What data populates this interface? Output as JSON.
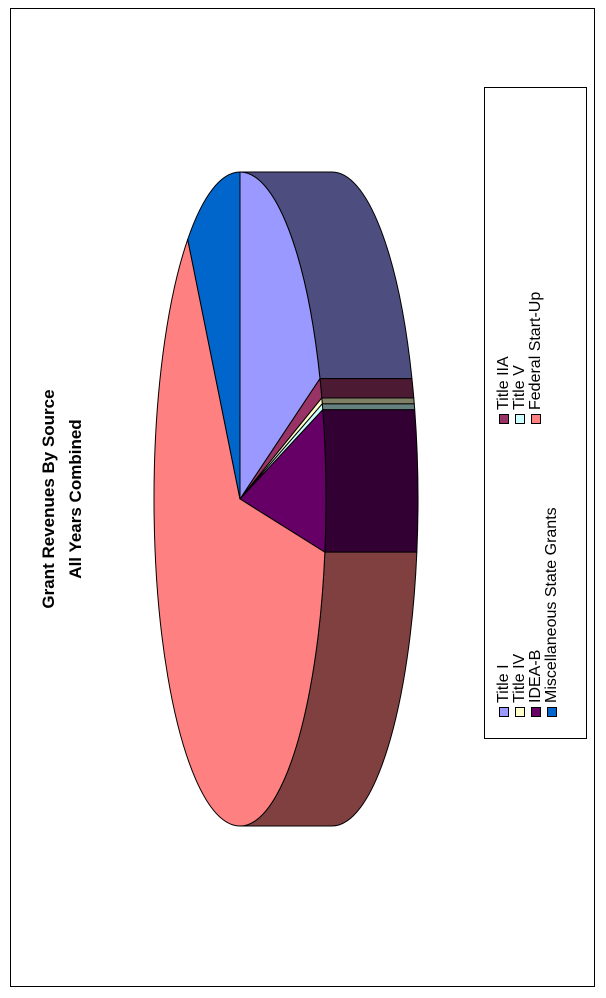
{
  "chart_data": {
    "type": "pie",
    "title": "Grant Revenues By Source",
    "subtitle": "All Years Combined",
    "labels": [
      "Title I",
      "Title IIA",
      "Title IV",
      "Title V",
      "IDEA-B",
      "Federal Start-Up",
      "Miscellaneous State Grants"
    ],
    "values": [
      19,
      1,
      0.3,
      0.3,
      7,
      62,
      10.4
    ],
    "colors": [
      "#9999FF",
      "#993366",
      "#FFFFCC",
      "#CCFFFF",
      "#660066",
      "#FF8080",
      "#0066CC"
    ],
    "three_d": true,
    "orientation": "rotated-90-ccw",
    "legend": {
      "position": "right",
      "items": [
        {
          "label": "Title I",
          "color": "#9999FF"
        },
        {
          "label": "Title IV",
          "color": "#FFFFCC"
        },
        {
          "label": "IDEA-B",
          "color": "#660066"
        },
        {
          "label": "Miscellaneous State Grants",
          "color": "#0066CC"
        },
        {
          "label": "Title IIA",
          "color": "#993366"
        },
        {
          "label": "Title V",
          "color": "#CCFFFF"
        },
        {
          "label": "Federal Start-Up",
          "color": "#FF8080"
        }
      ]
    }
  }
}
